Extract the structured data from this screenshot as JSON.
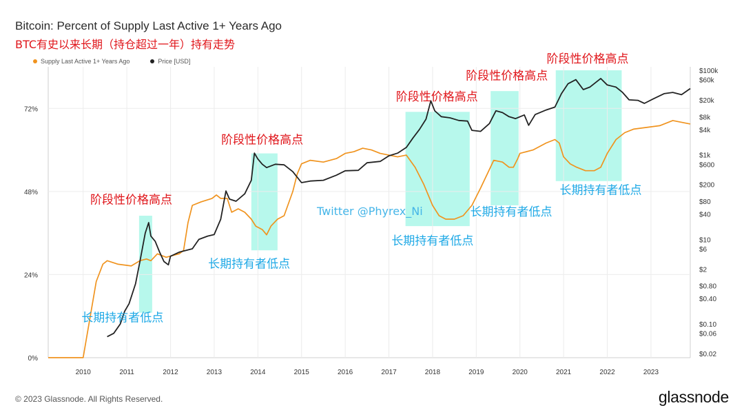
{
  "header": {
    "title": "Bitcoin: Percent of Supply Last Active 1+ Years Ago",
    "subtitle": "BTC有史以来长期（持仓超过一年）持有走势"
  },
  "legend": {
    "items": [
      {
        "label": "Supply Last Active 1+ Years Ago",
        "color": "#f0931e"
      },
      {
        "label": "Price [USD]",
        "color": "#222222"
      }
    ]
  },
  "footer": {
    "copyright": "© 2023 Glassnode. All Rights Reserved.",
    "brand": "glassnode"
  },
  "watermark": "Twitter @Phyrex_Ni",
  "chart_data": {
    "type": "line",
    "x_axis": {
      "ticks": [
        "2010",
        "2011",
        "2012",
        "2013",
        "2014",
        "2015",
        "2016",
        "2017",
        "2018",
        "2019",
        "2020",
        "2021",
        "2022",
        "2023"
      ],
      "range": [
        2009.2,
        2023.9
      ]
    },
    "y_left": {
      "ticks": [
        "0%",
        "24%",
        "48%",
        "72%"
      ],
      "tick_values": [
        0,
        24,
        48,
        72
      ],
      "range": [
        0,
        84
      ]
    },
    "y_right": {
      "scale": "log",
      "ticks": [
        "$0.02",
        "$0.06",
        "$0.10",
        "$0.40",
        "$0.80",
        "$2",
        "$6",
        "$10",
        "$40",
        "$80",
        "$200",
        "$600",
        "$1k",
        "$4k",
        "$8k",
        "$20k",
        "$60k",
        "$100k"
      ],
      "tick_values": [
        0.02,
        0.06,
        0.1,
        0.4,
        0.8,
        2,
        6,
        10,
        40,
        80,
        200,
        600,
        1000,
        4000,
        8000,
        20000,
        60000,
        100000
      ]
    },
    "series": [
      {
        "name": "Supply Last Active 1+ Years Ago",
        "color": "#f0931e",
        "axis": "left",
        "points": [
          [
            2009.2,
            0
          ],
          [
            2010.0,
            0
          ],
          [
            2010.3,
            22
          ],
          [
            2010.45,
            27
          ],
          [
            2010.55,
            28
          ],
          [
            2010.8,
            27
          ],
          [
            2011.1,
            26.5
          ],
          [
            2011.3,
            28
          ],
          [
            2011.45,
            28.5
          ],
          [
            2011.55,
            28
          ],
          [
            2011.7,
            30
          ],
          [
            2011.9,
            29
          ],
          [
            2012.2,
            30
          ],
          [
            2012.3,
            31
          ],
          [
            2012.4,
            39
          ],
          [
            2012.5,
            44
          ],
          [
            2012.7,
            45
          ],
          [
            2012.95,
            46
          ],
          [
            2013.05,
            47
          ],
          [
            2013.15,
            46
          ],
          [
            2013.3,
            46
          ],
          [
            2013.4,
            42
          ],
          [
            2013.55,
            43
          ],
          [
            2013.7,
            42
          ],
          [
            2013.85,
            40
          ],
          [
            2013.95,
            38
          ],
          [
            2014.1,
            37
          ],
          [
            2014.2,
            35.5
          ],
          [
            2014.3,
            38
          ],
          [
            2014.45,
            40
          ],
          [
            2014.6,
            41
          ],
          [
            2014.8,
            48
          ],
          [
            2014.9,
            53
          ],
          [
            2015.0,
            56
          ],
          [
            2015.2,
            57
          ],
          [
            2015.5,
            56.5
          ],
          [
            2015.8,
            57.5
          ],
          [
            2016.0,
            59
          ],
          [
            2016.2,
            59.5
          ],
          [
            2016.4,
            60.5
          ],
          [
            2016.6,
            60
          ],
          [
            2016.8,
            59
          ],
          [
            2017.0,
            58.5
          ],
          [
            2017.2,
            58
          ],
          [
            2017.4,
            58.5
          ],
          [
            2017.6,
            55
          ],
          [
            2017.8,
            50
          ],
          [
            2018.0,
            44
          ],
          [
            2018.15,
            41
          ],
          [
            2018.3,
            40
          ],
          [
            2018.5,
            40
          ],
          [
            2018.7,
            41
          ],
          [
            2018.9,
            44
          ],
          [
            2019.1,
            49
          ],
          [
            2019.25,
            53
          ],
          [
            2019.4,
            57
          ],
          [
            2019.6,
            56.5
          ],
          [
            2019.75,
            55
          ],
          [
            2019.85,
            55
          ],
          [
            2019.95,
            57.5
          ],
          [
            2020.0,
            59
          ],
          [
            2020.3,
            60
          ],
          [
            2020.6,
            62
          ],
          [
            2020.8,
            63
          ],
          [
            2020.9,
            62
          ],
          [
            2021.0,
            58
          ],
          [
            2021.15,
            56
          ],
          [
            2021.3,
            55
          ],
          [
            2021.5,
            54
          ],
          [
            2021.7,
            54
          ],
          [
            2021.85,
            55
          ],
          [
            2022.0,
            59
          ],
          [
            2022.2,
            63
          ],
          [
            2022.4,
            65
          ],
          [
            2022.6,
            66
          ],
          [
            2022.9,
            66.5
          ],
          [
            2023.2,
            67
          ],
          [
            2023.5,
            68.5
          ],
          [
            2023.7,
            68
          ],
          [
            2023.9,
            67.5
          ]
        ]
      },
      {
        "name": "Price [USD]",
        "color": "#222222",
        "axis": "right",
        "points": [
          [
            2010.55,
            0.05
          ],
          [
            2010.7,
            0.06
          ],
          [
            2010.85,
            0.1
          ],
          [
            2010.95,
            0.2
          ],
          [
            2011.05,
            0.3
          ],
          [
            2011.2,
            0.9
          ],
          [
            2011.3,
            3
          ],
          [
            2011.42,
            14
          ],
          [
            2011.5,
            25
          ],
          [
            2011.55,
            12
          ],
          [
            2011.65,
            9
          ],
          [
            2011.75,
            5
          ],
          [
            2011.85,
            3
          ],
          [
            2011.95,
            2.5
          ],
          [
            2012.0,
            4
          ],
          [
            2012.2,
            5
          ],
          [
            2012.5,
            6
          ],
          [
            2012.65,
            10
          ],
          [
            2012.85,
            12
          ],
          [
            2013.0,
            13
          ],
          [
            2013.15,
            30
          ],
          [
            2013.27,
            140
          ],
          [
            2013.35,
            90
          ],
          [
            2013.5,
            80
          ],
          [
            2013.7,
            120
          ],
          [
            2013.85,
            250
          ],
          [
            2013.92,
            1100
          ],
          [
            2014.0,
            800
          ],
          [
            2014.1,
            600
          ],
          [
            2014.2,
            500
          ],
          [
            2014.4,
            600
          ],
          [
            2014.6,
            580
          ],
          [
            2014.8,
            400
          ],
          [
            2015.0,
            220
          ],
          [
            2015.2,
            240
          ],
          [
            2015.5,
            250
          ],
          [
            2015.8,
            330
          ],
          [
            2016.0,
            420
          ],
          [
            2016.3,
            430
          ],
          [
            2016.5,
            650
          ],
          [
            2016.8,
            700
          ],
          [
            2017.0,
            950
          ],
          [
            2017.2,
            1100
          ],
          [
            2017.4,
            1500
          ],
          [
            2017.55,
            2500
          ],
          [
            2017.7,
            4000
          ],
          [
            2017.85,
            7000
          ],
          [
            2017.96,
            19000
          ],
          [
            2018.05,
            11000
          ],
          [
            2018.2,
            8000
          ],
          [
            2018.4,
            7500
          ],
          [
            2018.6,
            6500
          ],
          [
            2018.8,
            6300
          ],
          [
            2018.9,
            3800
          ],
          [
            2019.1,
            3600
          ],
          [
            2019.3,
            5500
          ],
          [
            2019.45,
            11000
          ],
          [
            2019.6,
            10000
          ],
          [
            2019.75,
            8000
          ],
          [
            2019.9,
            7200
          ],
          [
            2020.1,
            8800
          ],
          [
            2020.2,
            5000
          ],
          [
            2020.35,
            9000
          ],
          [
            2020.6,
            11500
          ],
          [
            2020.8,
            13500
          ],
          [
            2020.95,
            28000
          ],
          [
            2021.1,
            48000
          ],
          [
            2021.28,
            60000
          ],
          [
            2021.45,
            35000
          ],
          [
            2021.6,
            40000
          ],
          [
            2021.85,
            64000
          ],
          [
            2022.0,
            45000
          ],
          [
            2022.2,
            40000
          ],
          [
            2022.35,
            30000
          ],
          [
            2022.5,
            20000
          ],
          [
            2022.7,
            19500
          ],
          [
            2022.85,
            16500
          ],
          [
            2023.05,
            21000
          ],
          [
            2023.3,
            28000
          ],
          [
            2023.5,
            30000
          ],
          [
            2023.7,
            26500
          ],
          [
            2023.9,
            37000
          ]
        ]
      }
    ],
    "highlight_regions": [
      {
        "x": [
          2011.28,
          2011.58
        ],
        "y_top_pct": 41,
        "y_bottom_pct": 13
      },
      {
        "x": [
          2013.85,
          2014.45
        ],
        "y_top_pct": 59,
        "y_bottom_pct": 31
      },
      {
        "x": [
          2017.38,
          2018.85
        ],
        "y_top_pct": 71,
        "y_bottom_pct": 38
      },
      {
        "x": [
          2019.33,
          2019.97
        ],
        "y_top_pct": 77,
        "y_bottom_pct": 44
      },
      {
        "x": [
          2020.82,
          2022.33
        ],
        "y_top_pct": 83,
        "y_bottom_pct": 51
      }
    ],
    "annotations": [
      {
        "text": "阶段性价格高点",
        "style": "red",
        "x": 2011.1,
        "y_pct": 44.5
      },
      {
        "text": "阶段性价格高点",
        "style": "red",
        "x": 2014.1,
        "y_pct": 61.8
      },
      {
        "text": "阶段性价格高点",
        "style": "red",
        "x": 2018.1,
        "y_pct": 74.2
      },
      {
        "text": "阶段性价格高点",
        "style": "red",
        "x": 2019.7,
        "y_pct": 80.3
      },
      {
        "text": "阶段性价格高点",
        "style": "red",
        "x": 2021.55,
        "y_pct": 85.2
      },
      {
        "text": "长期持有者低点",
        "style": "blue",
        "x": 2010.9,
        "y_pct": 10.5
      },
      {
        "text": "长期持有者低点",
        "style": "blue",
        "x": 2013.8,
        "y_pct": 26
      },
      {
        "text": "长期持有者低点",
        "style": "blue",
        "x": 2018.0,
        "y_pct": 32.6
      },
      {
        "text": "长期持有者低点",
        "style": "blue",
        "x": 2019.8,
        "y_pct": 41
      },
      {
        "text": "长期持有者低点",
        "style": "blue",
        "x": 2021.85,
        "y_pct": 47.3
      }
    ]
  }
}
